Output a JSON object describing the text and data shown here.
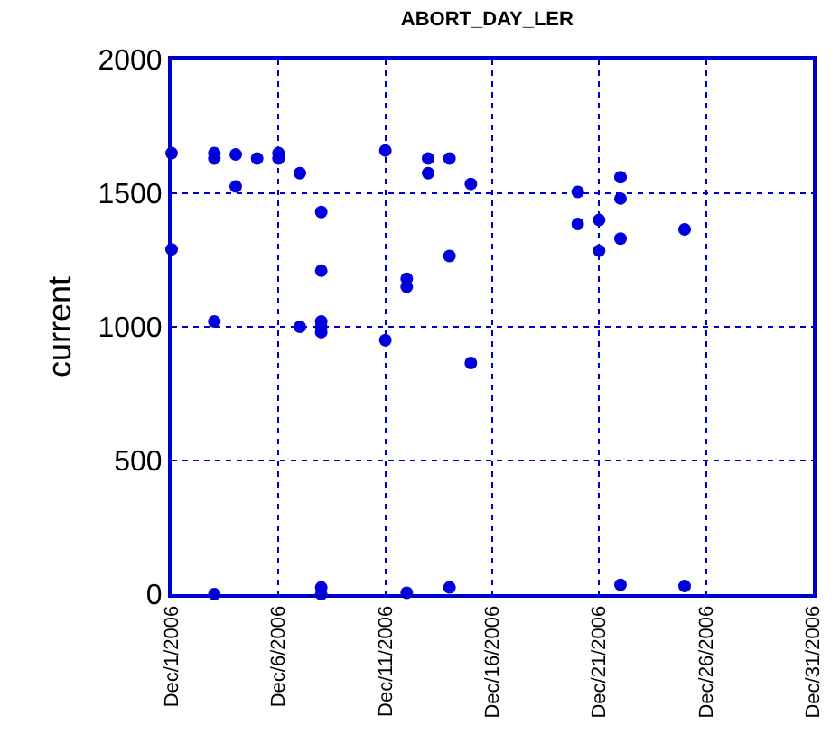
{
  "chart_data": {
    "type": "scatter",
    "title": "ABORT_DAY_LER",
    "ylabel": "current",
    "x": [
      "2006-12-01",
      "2006-12-01",
      "2006-12-03",
      "2006-12-03",
      "2006-12-03",
      "2006-12-03",
      "2006-12-04",
      "2006-12-04",
      "2006-12-05",
      "2006-12-06",
      "2006-12-06",
      "2006-12-07",
      "2006-12-07",
      "2006-12-08",
      "2006-12-08",
      "2006-12-08",
      "2006-12-08",
      "2006-12-08",
      "2006-12-08",
      "2006-12-08",
      "2006-12-11",
      "2006-12-11",
      "2006-12-12",
      "2006-12-12",
      "2006-12-12",
      "2006-12-13",
      "2006-12-13",
      "2006-12-14",
      "2006-12-14",
      "2006-12-14",
      "2006-12-15",
      "2006-12-15",
      "2006-12-20",
      "2006-12-20",
      "2006-12-21",
      "2006-12-21",
      "2006-12-22",
      "2006-12-22",
      "2006-12-22",
      "2006-12-22",
      "2006-12-25",
      "2006-12-25"
    ],
    "values": [
      1650,
      1290,
      1650,
      1630,
      1020,
      0,
      1645,
      1525,
      1630,
      1650,
      1630,
      1575,
      1000,
      1430,
      1210,
      1020,
      1000,
      980,
      25,
      0,
      1660,
      950,
      1180,
      1150,
      5,
      1630,
      1575,
      1630,
      1265,
      25,
      1535,
      865,
      1505,
      1385,
      1400,
      1285,
      1560,
      1480,
      1330,
      35,
      1365,
      30
    ],
    "color": "#0000dd",
    "marker": "circle",
    "grid": true,
    "xlim": [
      "2006-12-01",
      "2006-12-31"
    ],
    "xticks": [
      {
        "value": "2006-12-01",
        "label": "Dec/1/2006"
      },
      {
        "value": "2006-12-06",
        "label": "Dec/6/2006"
      },
      {
        "value": "2006-12-11",
        "label": "Dec/11/2006"
      },
      {
        "value": "2006-12-16",
        "label": "Dec/16/2006"
      },
      {
        "value": "2006-12-21",
        "label": "Dec/21/2006"
      },
      {
        "value": "2006-12-26",
        "label": "Dec/26/2006"
      },
      {
        "value": "2006-12-31",
        "label": "Dec/31/2006"
      }
    ],
    "ylim": [
      0,
      2000
    ],
    "yticks": [
      0,
      500,
      1000,
      1500,
      2000
    ]
  }
}
